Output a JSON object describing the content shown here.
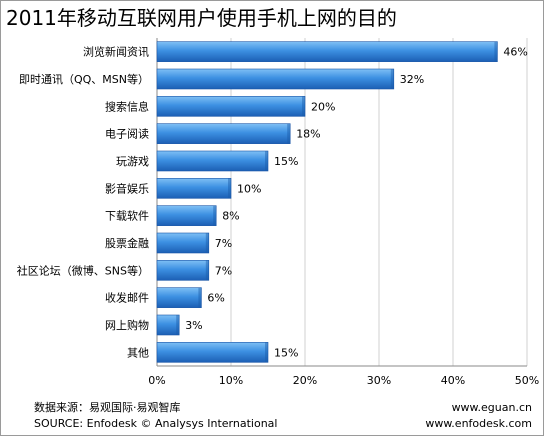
{
  "title": "2011年移动互联网用户使用手机上网的目的",
  "chart_data": {
    "type": "bar",
    "orientation": "horizontal",
    "categories": [
      "浏览新闻资讯",
      "即时通讯（QQ、MSN等）",
      "搜索信息",
      "电子阅读",
      "玩游戏",
      "影音娱乐",
      "下载软件",
      "股票金融",
      "社区论坛（微博、SNS等）",
      "收发邮件",
      "网上购物",
      "其他"
    ],
    "values": [
      46,
      32,
      20,
      18,
      15,
      10,
      8,
      7,
      7,
      6,
      3,
      15
    ],
    "value_labels": [
      "46%",
      "32%",
      "20%",
      "18%",
      "15%",
      "10%",
      "8%",
      "7%",
      "7%",
      "6%",
      "3%",
      "15%"
    ],
    "xlim": [
      0,
      50
    ],
    "x_ticks": [
      0,
      10,
      20,
      30,
      40,
      50
    ],
    "x_tick_labels": [
      "0%",
      "10%",
      "20%",
      "30%",
      "40%",
      "50%"
    ],
    "grid": true,
    "bar_color": "#2e7fd6"
  },
  "footer": {
    "source_cn": "数据来源：易观国际·易观智库",
    "source_en": "SOURCE: Enfodesk © Analysys International",
    "url1": "www.eguan.cn",
    "url2": "www.enfodesk.com"
  }
}
